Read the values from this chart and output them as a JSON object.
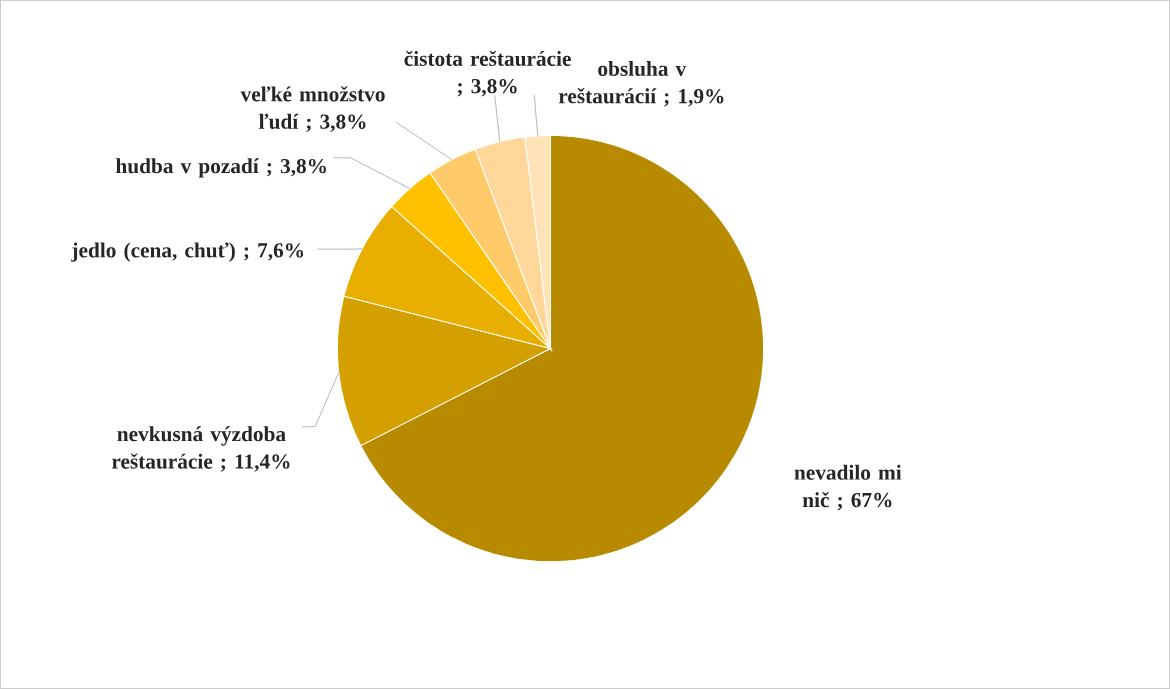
{
  "chart_data": {
    "type": "pie",
    "categories": [
      "nevadilo mi nič",
      "nevkusná výzdoba reštaurácie",
      "jedlo (cena, chuť)",
      "hudba v pozadí",
      "veľké množstvo ľudí",
      "čistota reštaurácie",
      "obsluha v reštaurácií"
    ],
    "values": [
      67,
      11.4,
      7.6,
      3.8,
      3.8,
      3.8,
      1.9
    ],
    "value_labels": [
      "; 67%",
      "; 11,4%",
      "; 7,6%",
      "; 3,8%",
      "; 3,8%",
      "; 3,8%",
      "; 1,9%"
    ],
    "colors": [
      "#b78a00",
      "#d4a000",
      "#e8ae00",
      "#ffc000",
      "#ffca6a",
      "#ffd79a",
      "#ffe3b8"
    ]
  }
}
